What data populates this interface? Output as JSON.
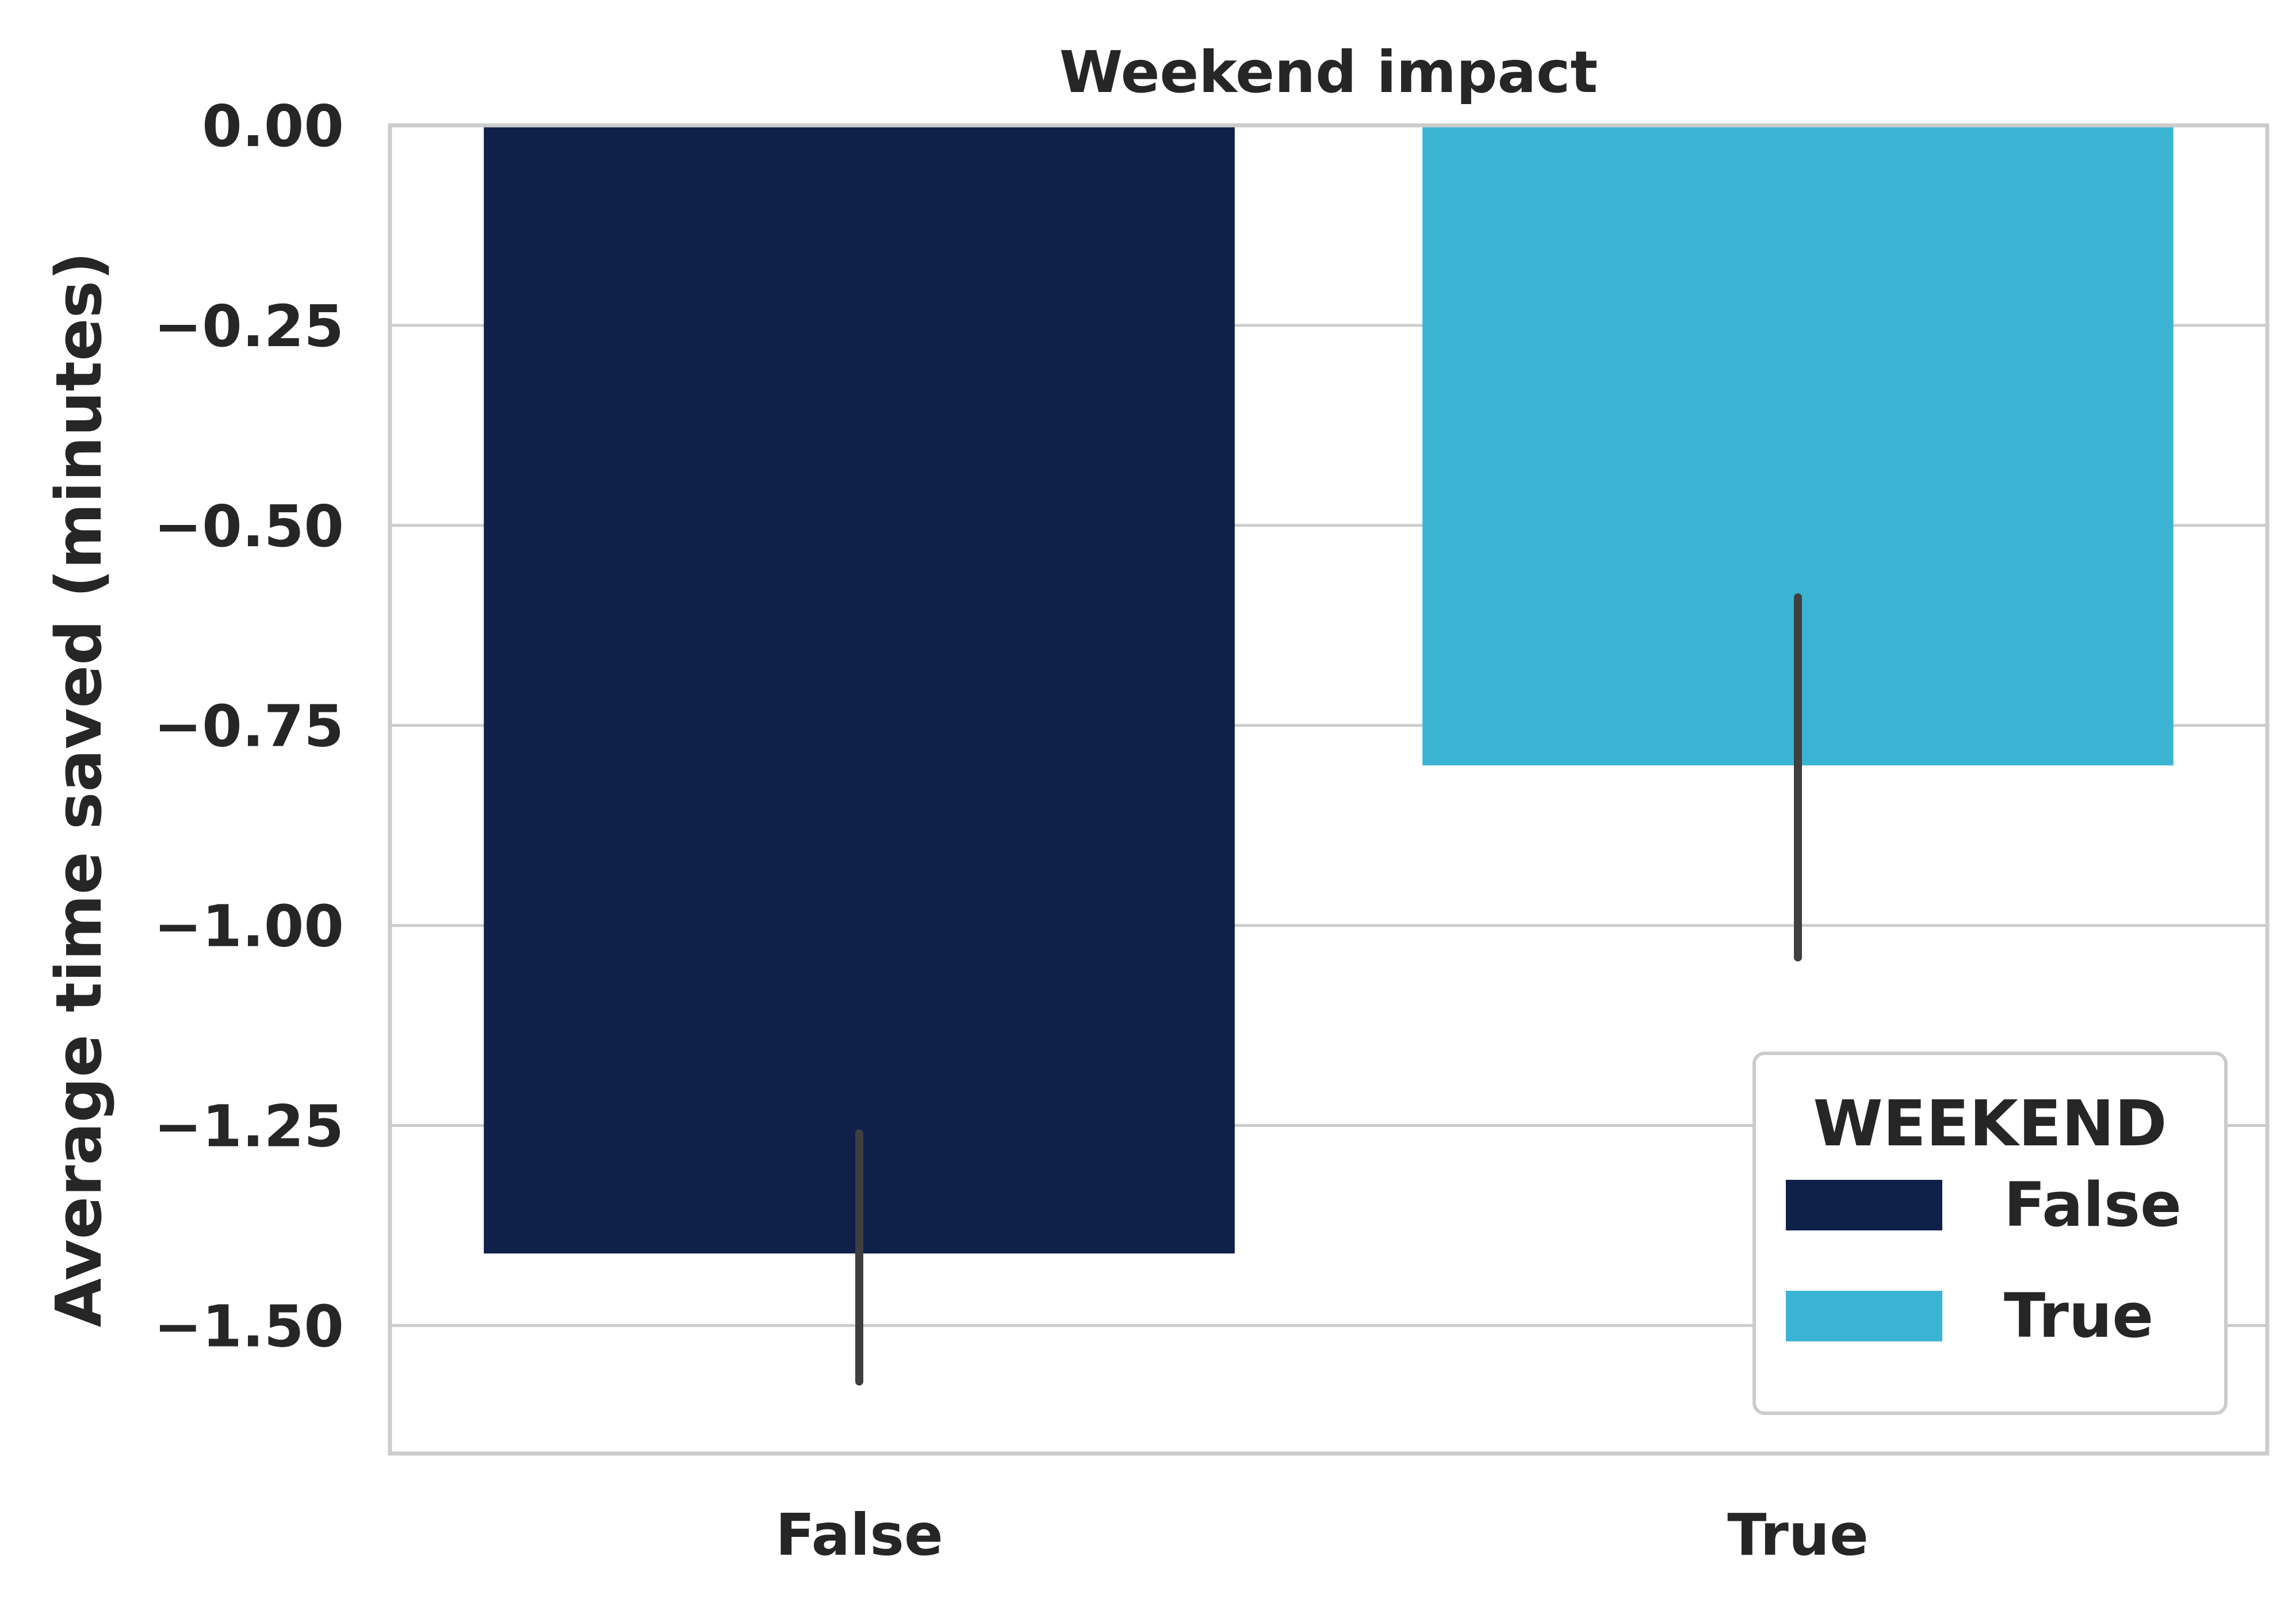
{
  "chart_data": {
    "type": "bar",
    "title": "Weekend impact",
    "xlabel": "",
    "ylabel": "Average time saved (minutes)",
    "categories": [
      "False",
      "True"
    ],
    "values": [
      -1.41,
      -0.8
    ],
    "error_bars": [
      {
        "low": -1.57,
        "high": -1.26
      },
      {
        "low": -1.04,
        "high": -0.59
      }
    ],
    "ylim": [
      -1.66,
      0.0
    ],
    "y_ticks": [
      0.0,
      -0.25,
      -0.5,
      -0.75,
      -1.0,
      -1.25,
      -1.5
    ],
    "y_tick_labels": [
      "0.00",
      "−0.25",
      "−0.50",
      "−0.75",
      "−1.00",
      "−1.25",
      "−1.50"
    ],
    "grid": true,
    "legend": {
      "title": "WEEKEND",
      "placement": "lower-right",
      "entries": [
        "False",
        "True"
      ]
    },
    "colors": {
      "False": "#0f2049",
      "True": "#3bb4d3",
      "error_bar": "#3f3f3f",
      "grid": "#cccccc",
      "spine": "#cccccc",
      "text": "#262626"
    }
  }
}
